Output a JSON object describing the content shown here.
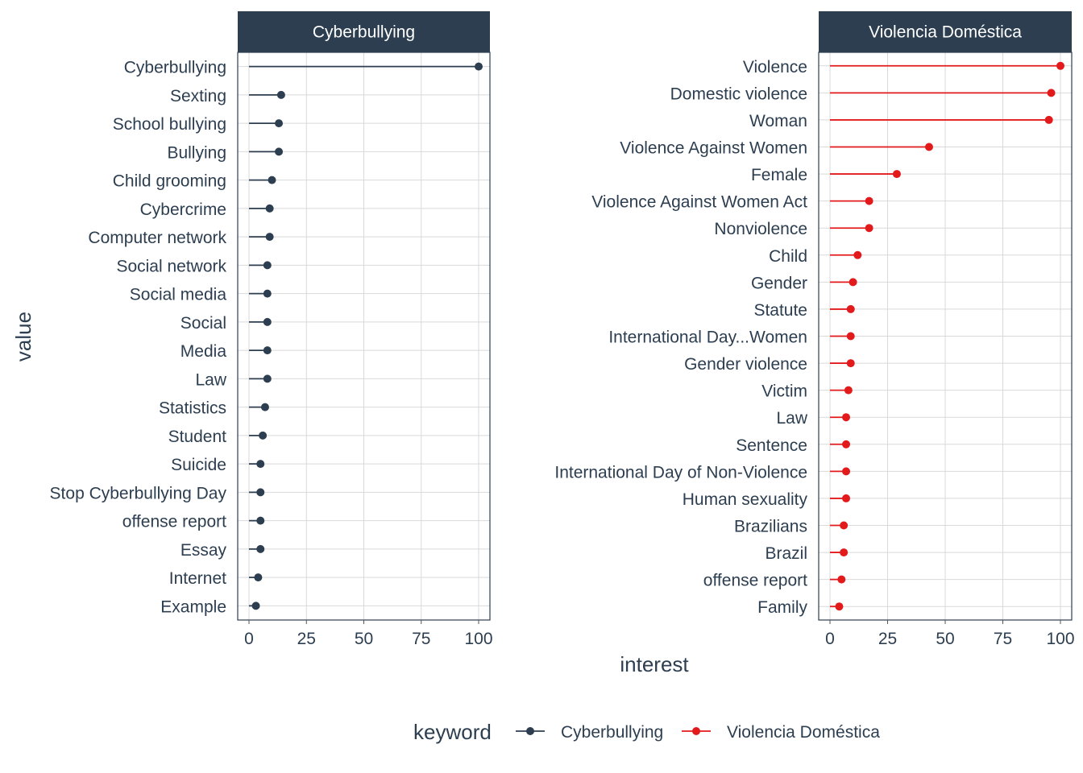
{
  "chart_data": [
    {
      "type": "lollipop",
      "panel_title": "Cyberbullying",
      "series_name": "Cyberbullying",
      "color": "#2c3e50",
      "xlim": [
        0,
        100
      ],
      "xticks": [
        0,
        25,
        50,
        75,
        100
      ],
      "categories": [
        "Cyberbullying",
        "Sexting",
        "School bullying",
        "Bullying",
        "Child grooming",
        "Cybercrime",
        "Computer network",
        "Social network",
        "Social media",
        "Social",
        "Media",
        "Law",
        "Statistics",
        "Student",
        "Suicide",
        "Stop Cyberbullying Day",
        "offense report",
        "Essay",
        "Internet",
        "Example"
      ],
      "values": [
        100,
        14,
        13,
        13,
        10,
        9,
        9,
        8,
        8,
        8,
        8,
        8,
        7,
        6,
        5,
        5,
        5,
        5,
        4,
        3
      ]
    },
    {
      "type": "lollipop",
      "panel_title": "Violencia Doméstica",
      "series_name": "Violencia Doméstica",
      "color": "#e31a1c",
      "xlim": [
        0,
        100
      ],
      "xticks": [
        0,
        25,
        50,
        75,
        100
      ],
      "categories": [
        "Violence",
        "Domestic violence",
        "Woman",
        "Violence Against Women",
        "Female",
        "Violence Against Women Act",
        "Nonviolence",
        "Child",
        "Gender",
        "Statute",
        "International Day...Women",
        "Gender violence",
        "Victim",
        "Law",
        "Sentence",
        "International Day of Non-Violence",
        "Human sexuality",
        "Brazilians",
        "Brazil",
        "offense report",
        "Family"
      ],
      "values": [
        100,
        96,
        95,
        43,
        29,
        17,
        17,
        12,
        10,
        9,
        9,
        9,
        8,
        7,
        7,
        7,
        7,
        6,
        6,
        5,
        4
      ]
    }
  ],
  "axes": {
    "xlabel": "interest",
    "ylabel": "value"
  },
  "legend": {
    "title": "keyword",
    "position": "bottom",
    "items": [
      {
        "label": "Cyberbullying",
        "color": "#2c3e50"
      },
      {
        "label": "Violencia Doméstica",
        "color": "#e31a1c"
      }
    ]
  },
  "colors": {
    "strip_background": "#2c3e50",
    "grid": "#d9d9d9",
    "text": "#2c3e50"
  }
}
